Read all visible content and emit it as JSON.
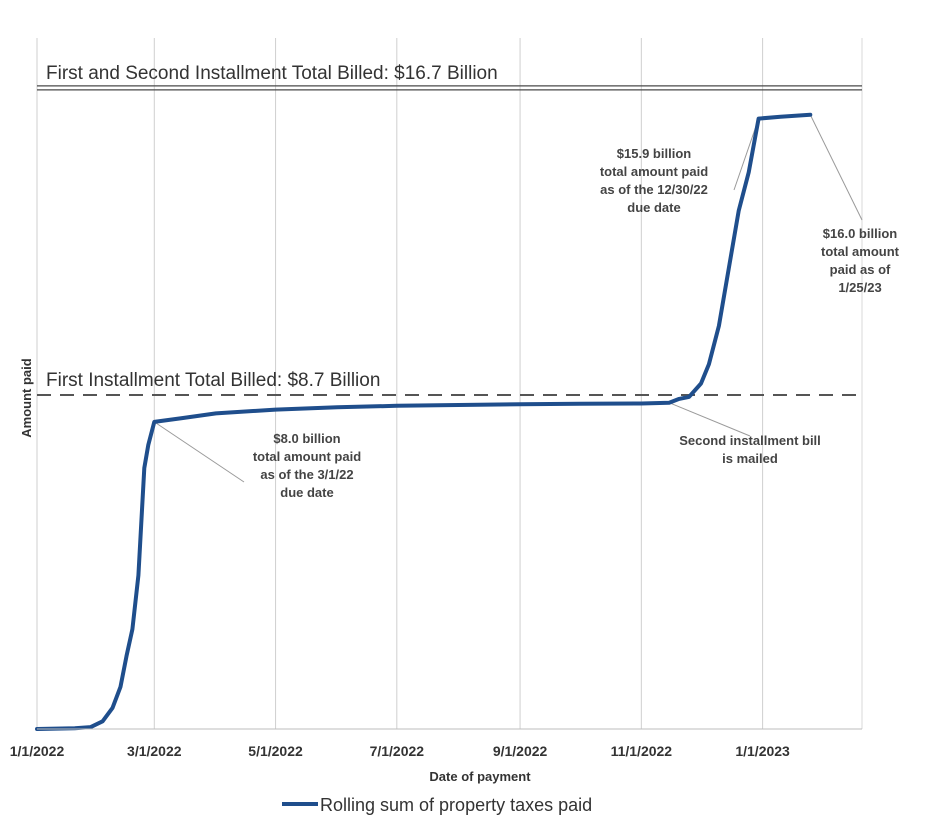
{
  "chart_data": {
    "type": "line",
    "title": "",
    "xlabel": "Date of payment",
    "ylabel": "Amount paid",
    "x_ticks": [
      "1/1/2022",
      "3/1/2022",
      "5/1/2022",
      "7/1/2022",
      "9/1/2022",
      "11/1/2022",
      "1/1/2023"
    ],
    "ylim": [
      0,
      18.0
    ],
    "grid": "vertical",
    "legend_position": "bottom",
    "series": [
      {
        "name": "Rolling sum of property taxes paid",
        "color": "#1f4e8c",
        "points": [
          [
            "2022-01-01",
            0.0
          ],
          [
            "2022-01-20",
            0.02
          ],
          [
            "2022-01-28",
            0.05
          ],
          [
            "2022-02-03",
            0.2
          ],
          [
            "2022-02-08",
            0.55
          ],
          [
            "2022-02-12",
            1.1
          ],
          [
            "2022-02-15",
            1.9
          ],
          [
            "2022-02-18",
            2.6
          ],
          [
            "2022-02-21",
            4.0
          ],
          [
            "2022-02-24",
            6.8
          ],
          [
            "2022-02-26",
            7.4
          ],
          [
            "2022-03-01",
            8.0
          ],
          [
            "2022-03-15",
            8.1
          ],
          [
            "2022-04-01",
            8.22
          ],
          [
            "2022-05-01",
            8.32
          ],
          [
            "2022-06-01",
            8.38
          ],
          [
            "2022-07-01",
            8.42
          ],
          [
            "2022-08-01",
            8.44
          ],
          [
            "2022-09-01",
            8.46
          ],
          [
            "2022-10-01",
            8.47
          ],
          [
            "2022-11-01",
            8.48
          ],
          [
            "2022-11-15",
            8.5
          ],
          [
            "2022-11-20",
            8.6
          ],
          [
            "2022-11-25",
            8.65
          ],
          [
            "2022-12-01",
            9.0
          ],
          [
            "2022-12-05",
            9.5
          ],
          [
            "2022-12-10",
            10.5
          ],
          [
            "2022-12-15",
            12.0
          ],
          [
            "2022-12-20",
            13.5
          ],
          [
            "2022-12-25",
            14.5
          ],
          [
            "2022-12-30",
            15.9
          ],
          [
            "2023-01-10",
            15.95
          ],
          [
            "2023-01-25",
            16.0
          ]
        ]
      }
    ],
    "reference_lines": [
      {
        "label": "First and Second Installment Total Billed: $16.7 Billion",
        "value": 16.7,
        "style": "double-solid"
      },
      {
        "label": "First Installment Total Billed: $8.7 Billion",
        "value": 8.7,
        "style": "dashed"
      }
    ],
    "annotations": [
      {
        "lines": [
          "$8.0 billion",
          "total amount paid",
          "as of the 3/1/22",
          "due date"
        ],
        "x": "2022-03-01",
        "y": 8.0
      },
      {
        "lines": [
          "Second installment bill",
          "is mailed"
        ],
        "x": "2022-11-15",
        "y": 8.5
      },
      {
        "lines": [
          "$15.9 billion",
          "total amount paid",
          "as of the 12/30/22",
          "due date"
        ],
        "x": "2022-12-30",
        "y": 15.9
      },
      {
        "lines": [
          "$16.0 billion",
          "total amount",
          "paid as of",
          "1/25/23"
        ],
        "x": "2023-01-25",
        "y": 16.0
      }
    ]
  }
}
